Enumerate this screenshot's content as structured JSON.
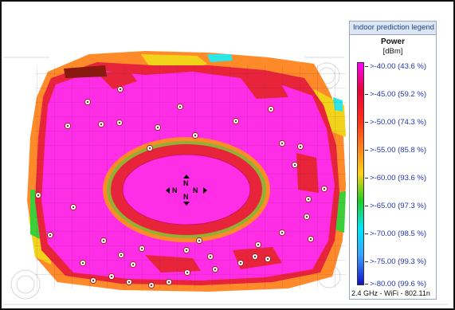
{
  "legend": {
    "title": "Indoor prediction legend",
    "quantity": "Power",
    "unit": "[dBm]",
    "entries": [
      {
        "label": ">-40.00 (43.6 %)",
        "color": "#ff00ff"
      },
      {
        "label": ">-45.00 (59.2 %)",
        "color": "#e8003a"
      },
      {
        "label": ">-50.00 (74.3 %)",
        "color": "#ff2a1a"
      },
      {
        "label": ">-55.00 (85.8 %)",
        "color": "#ff7a1a"
      },
      {
        "label": ">-60.00 (93.6 %)",
        "color": "#ffd21a"
      },
      {
        "label": ">-65.00 (97.3 %)",
        "color": "#22cc22"
      },
      {
        "label": ">-70.00 (98.5 %)",
        "color": "#00e5ff"
      },
      {
        "label": ">-75.00 (99.3 %)",
        "color": "#3aa0ff"
      },
      {
        "label": ">-80.00 (99.6 %)",
        "color": "#1010c8"
      }
    ],
    "footer": "2.4 GHz - WiFi - 802.11n"
  },
  "map": {
    "center_marker_text": "N",
    "access_point_icon": "access-point-icon",
    "colors": {
      "strong": "#ff2ee6",
      "weak_red": "#e8243a",
      "orange": "#ff8a2a",
      "yellow": "#f3d21a",
      "green": "#3ccf3a",
      "cyan": "#2ee6e6",
      "wall": "#6b2a6b",
      "background": "#ffffff"
    }
  }
}
